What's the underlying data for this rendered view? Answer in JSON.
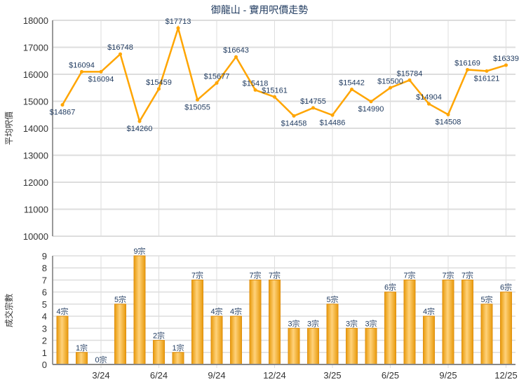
{
  "chart_data": [
    {
      "type": "line",
      "title": "御龍山 - 實用呎價走勢",
      "ylabel": "平均呎價",
      "ylim": [
        10000,
        18000
      ],
      "yticks": [
        "10000",
        "11000",
        "12000",
        "13000",
        "14000",
        "15000",
        "16000",
        "17000",
        "18000"
      ],
      "xtick_labels": [
        "3/24",
        "6/24",
        "9/24",
        "12/24",
        "3/25",
        "6/25",
        "9/25",
        "12/25"
      ],
      "xtick_index": [
        2,
        5,
        8,
        11,
        14,
        17,
        20,
        23
      ],
      "values": [
        14867,
        16094,
        16094,
        16748,
        14260,
        15459,
        17713,
        15055,
        15677,
        16643,
        15418,
        15161,
        14458,
        14755,
        14486,
        15442,
        14990,
        15500,
        15784,
        14904,
        14508,
        16169,
        16121,
        16339
      ],
      "labels": [
        "$14867",
        "$16094",
        "$16094",
        "$16748",
        "$14260",
        "$15459",
        "$17713",
        "$15055",
        "$15677",
        "$16643",
        "$15418",
        "$15161",
        "$14458",
        "$14755",
        "$14486",
        "$15442",
        "$14990",
        "$15500",
        "$15784",
        "$14904",
        "$14508",
        "$16169",
        "$16121",
        "$16339"
      ],
      "color": "#FFA500",
      "grid": true
    },
    {
      "type": "bar",
      "ylabel": "成交宗數",
      "ylim": [
        0,
        9
      ],
      "yticks": [
        "0",
        "1",
        "2",
        "3",
        "4",
        "5",
        "6",
        "7",
        "8",
        "9"
      ],
      "values": [
        4,
        1,
        0,
        5,
        9,
        2,
        1,
        7,
        4,
        4,
        7,
        7,
        3,
        3,
        5,
        3,
        3,
        6,
        7,
        4,
        7,
        7,
        5,
        6
      ],
      "labels": [
        "4宗",
        "1宗",
        "0宗",
        "5宗",
        "9宗",
        "2宗",
        "1宗",
        "7宗",
        "4宗",
        "4宗",
        "7宗",
        "7宗",
        "3宗",
        "3宗",
        "5宗",
        "3宗",
        "3宗",
        "6宗",
        "7宗",
        "4宗",
        "7宗",
        "7宗",
        "5宗",
        "6宗"
      ],
      "color": "#F2A91E",
      "grid": true
    }
  ]
}
